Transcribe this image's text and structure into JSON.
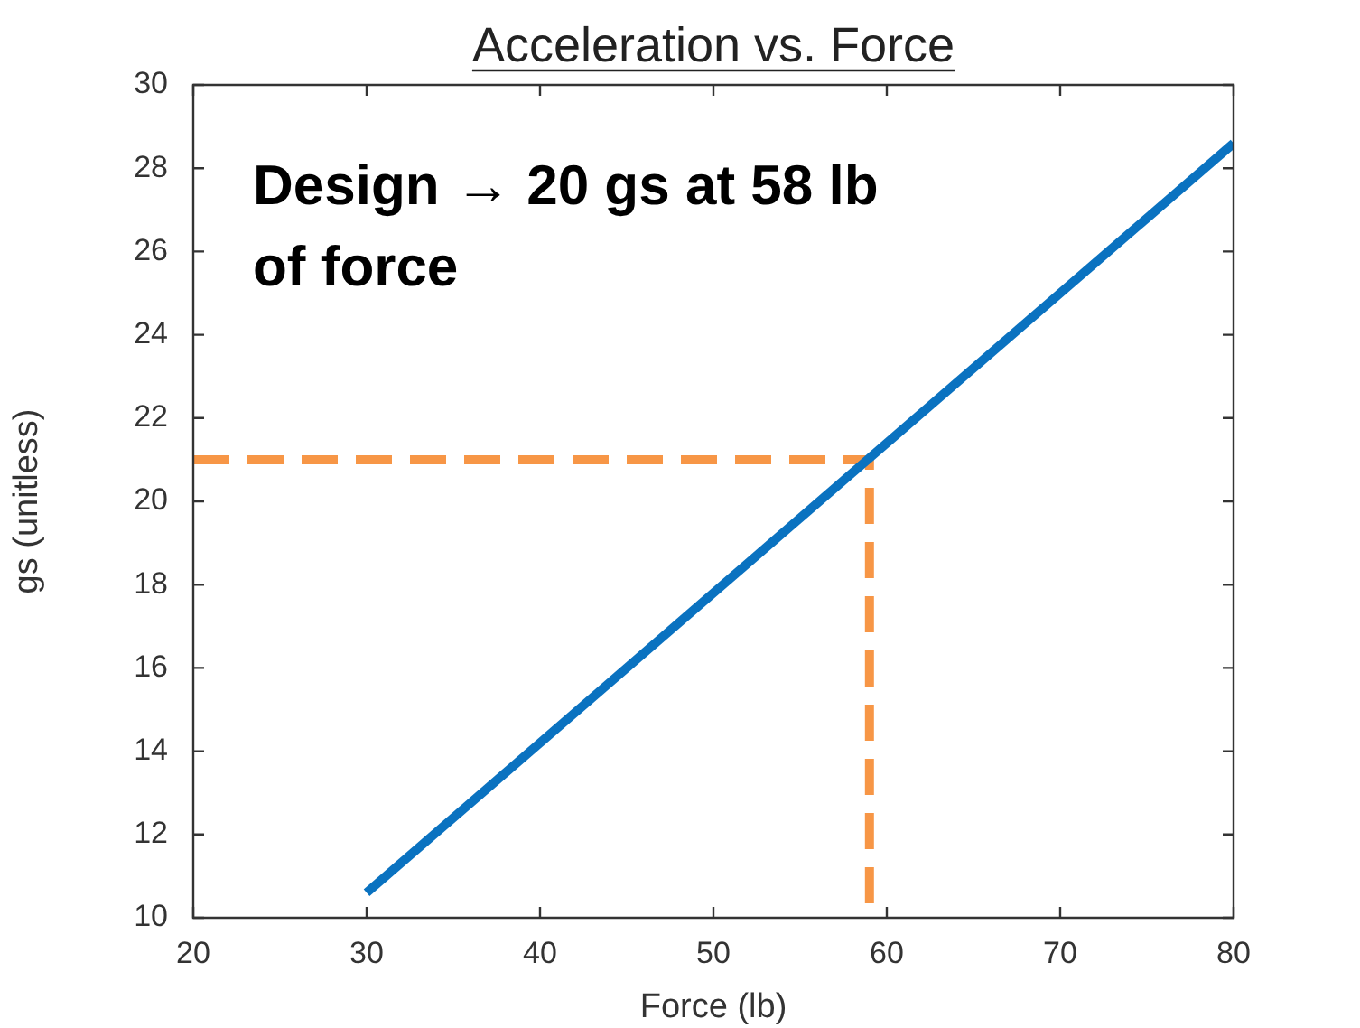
{
  "chart_data": {
    "type": "line",
    "title": "Acceleration vs. Force",
    "xlabel": "Force (lb)",
    "ylabel": "gs (unitless)",
    "annotations": [
      "Design → 20 gs at 58 lb of force"
    ],
    "series": [
      {
        "x": [
          30,
          80
        ],
        "values": [
          10.6,
          28.6
        ],
        "color": "#0a72c0",
        "line_style": "solid"
      },
      {
        "x": [
          20,
          59,
          59
        ],
        "values": [
          21,
          21,
          10
        ],
        "color": "#f79646",
        "line_style": "dashed"
      }
    ],
    "xlim": [
      20,
      80
    ],
    "xticks": [
      20,
      30,
      40,
      50,
      60,
      70,
      80
    ],
    "ylim": [
      10,
      30
    ],
    "yticks": [
      10,
      12,
      14,
      16,
      18,
      20,
      22,
      24,
      26,
      28,
      30
    ],
    "grid": false,
    "legend": false,
    "marker": "none"
  }
}
